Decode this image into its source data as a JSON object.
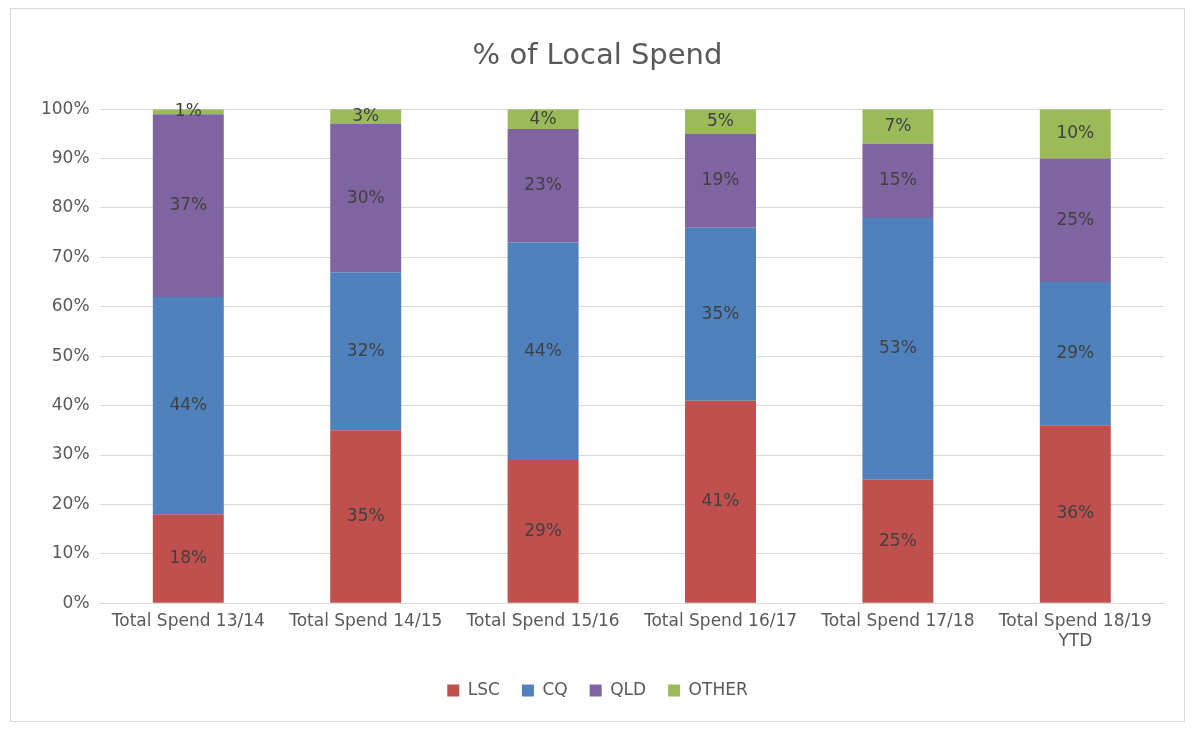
{
  "chart_data": {
    "type": "bar",
    "title": "% of Local Spend",
    "stacked": true,
    "grid": "y",
    "legend": "bottom",
    "categories": [
      "Total Spend 13/14",
      "Total Spend 14/15",
      "Total Spend 15/16",
      "Total Spend 16/17",
      "Total Spend 17/18",
      "Total Spend 18/19 YTD"
    ],
    "ylim": [
      0,
      100
    ],
    "yticks": [
      {
        "value": 0,
        "label": "0%"
      },
      {
        "value": 10,
        "label": "10%"
      },
      {
        "value": 20,
        "label": "20%"
      },
      {
        "value": 30,
        "label": "30%"
      },
      {
        "value": 40,
        "label": "40%"
      },
      {
        "value": 50,
        "label": "50%"
      },
      {
        "value": 60,
        "label": "60%"
      },
      {
        "value": 70,
        "label": "70%"
      },
      {
        "value": 80,
        "label": "80%"
      },
      {
        "value": 90,
        "label": "90%"
      },
      {
        "value": 100,
        "label": "100%"
      }
    ],
    "series": [
      {
        "name": "LSC",
        "color": "#c0504d",
        "values": [
          18,
          35,
          29,
          41,
          25,
          36
        ],
        "value_labels": [
          "18%",
          "35%",
          "29%",
          "41%",
          "25%",
          "36%"
        ]
      },
      {
        "name": "CQ",
        "color": "#4f81bd",
        "values": [
          44,
          32,
          44,
          35,
          53,
          29
        ],
        "value_labels": [
          "44%",
          "32%",
          "44%",
          "35%",
          "53%",
          "29%"
        ]
      },
      {
        "name": "QLD",
        "color": "#8064a2",
        "values": [
          37,
          30,
          23,
          19,
          15,
          25
        ],
        "value_labels": [
          "37%",
          "30%",
          "23%",
          "19%",
          "15%",
          "25%"
        ]
      },
      {
        "name": "OTHER",
        "color": "#9bbb59",
        "values": [
          1,
          3,
          4,
          5,
          7,
          10
        ],
        "value_labels": [
          "1%",
          "3%",
          "4%",
          "5%",
          "7%",
          "10%"
        ]
      }
    ]
  }
}
